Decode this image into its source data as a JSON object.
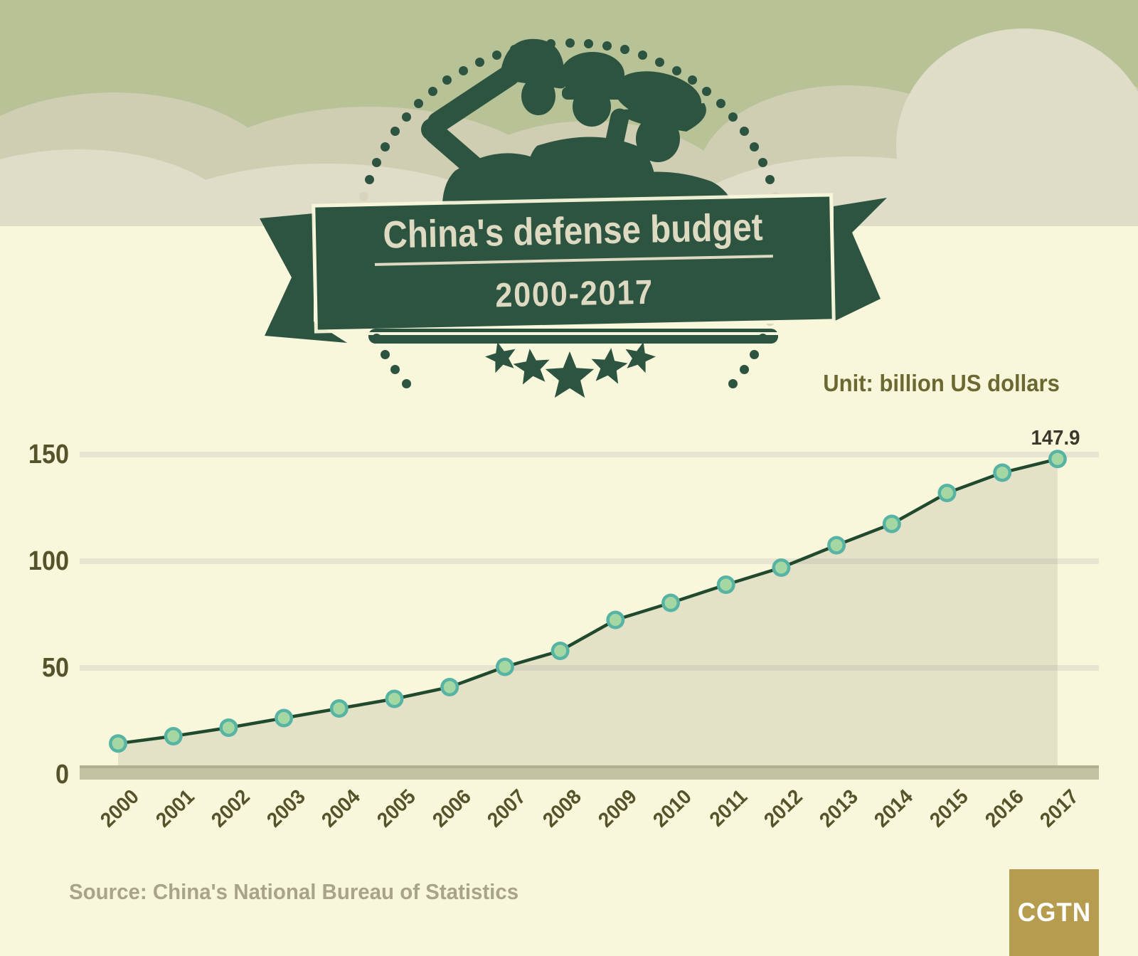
{
  "header": {
    "title": "China's defense budget",
    "subtitle": "2000-2017"
  },
  "chart": {
    "unit_label": "Unit: billion US dollars",
    "last_point_label": "147.9"
  },
  "chart_data": {
    "type": "area",
    "title": "China's defense budget 2000-2017",
    "unit": "billion US dollars",
    "x": [
      2000,
      2001,
      2002,
      2003,
      2004,
      2005,
      2006,
      2007,
      2008,
      2009,
      2010,
      2011,
      2012,
      2013,
      2014,
      2015,
      2016,
      2017
    ],
    "values": [
      14.6,
      18,
      22,
      26.5,
      31,
      35.5,
      41,
      50.5,
      58,
      72.5,
      80.5,
      89,
      97,
      107.5,
      117.5,
      132,
      141.5,
      147.9
    ],
    "ylim": [
      0,
      150
    ],
    "yticks": [
      0,
      50,
      100,
      150
    ],
    "grid": true,
    "legend": false,
    "annotations": [
      {
        "x": 2017,
        "label": "147.9"
      }
    ]
  },
  "footer": {
    "source": "Source: China's National Bureau of Statistics",
    "logo": "CGTN"
  },
  "colors": {
    "banner_green": "#2c5440",
    "cream_text": "#ded9c1",
    "page_bg": "#f9f7db",
    "sky": "#b7c297",
    "cloud_dark": "#cfcdb2",
    "cloud_light": "#dfddc8",
    "gridline": "#e7e5d1",
    "axis_bar": "#c2c2a3",
    "axis_bar_edge": "#b0b092",
    "line": "#21492e",
    "marker_ring": "#57b3a3",
    "marker_fill": "#a5d7a3",
    "area_fill": "rgba(168,166,138,0.26)",
    "tick_text": "#55532a",
    "unit_text": "#6b6831",
    "value_text": "#3a392c",
    "source_text": "#a7a489",
    "logo_gold": "#b59c4e",
    "dot_cream": "#d8d3ba"
  }
}
